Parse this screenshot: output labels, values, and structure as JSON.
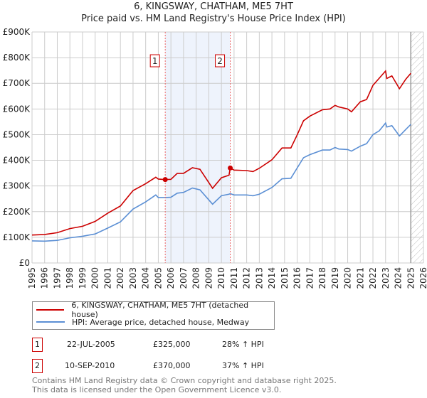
{
  "title": "6, KINGSWAY, CHATHAM, ME5 7HT",
  "subtitle": "Price paid vs. HM Land Registry's House Price Index (HPI)",
  "chart_data": {
    "type": "line",
    "title": "6, KINGSWAY, CHATHAM, ME5 7HT — Price paid vs. HM Land Registry's House Price Index (HPI)",
    "xlim": [
      1995,
      2026
    ],
    "ylim": [
      0,
      900000
    ],
    "x_ticks": [
      "1995",
      "1996",
      "1997",
      "1998",
      "1999",
      "2000",
      "2001",
      "2002",
      "2003",
      "2004",
      "2005",
      "2006",
      "2007",
      "2008",
      "2009",
      "2010",
      "2011",
      "2012",
      "2013",
      "2014",
      "2015",
      "2016",
      "2017",
      "2018",
      "2019",
      "2020",
      "2021",
      "2022",
      "2023",
      "2024",
      "2025",
      "2026"
    ],
    "y_ticks": [
      {
        "v": 0,
        "label": "£0"
      },
      {
        "v": 100000,
        "label": "£100K"
      },
      {
        "v": 200000,
        "label": "£200K"
      },
      {
        "v": 300000,
        "label": "£300K"
      },
      {
        "v": 400000,
        "label": "£400K"
      },
      {
        "v": 500000,
        "label": "£500K"
      },
      {
        "v": 600000,
        "label": "£600K"
      },
      {
        "v": 700000,
        "label": "£700K"
      },
      {
        "v": 800000,
        "label": "£800K"
      },
      {
        "v": 900000,
        "label": "£900K"
      }
    ],
    "grid": true,
    "shaded_range": [
      2005.55,
      2010.7
    ],
    "forecast_from": 2025.0,
    "colors": {
      "property": "#cc0000",
      "hpi": "#5b8fd4",
      "shade": "#eef3fc"
    },
    "x": [
      1995,
      1996,
      1997,
      1998,
      1999,
      2000,
      2001,
      2002,
      2003,
      2004,
      2004.8,
      2005,
      2005.55,
      2006,
      2006.5,
      2007,
      2007.7,
      2008.3,
      2009.3,
      2010,
      2010.6,
      2010.7,
      2011,
      2012,
      2012.5,
      2013,
      2014,
      2014.8,
      2015.5,
      2016,
      2016.5,
      2017,
      2018,
      2018.6,
      2019,
      2019.3,
      2020,
      2020.3,
      2021,
      2021.5,
      2022,
      2022.5,
      2023,
      2023.1,
      2023.5,
      2024.1,
      2024.6,
      2025
    ],
    "series": [
      {
        "name": "6, KINGSWAY, CHATHAM, ME5 7HT (detached house)",
        "values": [
          109000,
          111000,
          118000,
          134000,
          143000,
          162000,
          194000,
          222000,
          282000,
          309000,
          334000,
          327000,
          325000,
          326000,
          349000,
          349000,
          371000,
          365000,
          291000,
          332000,
          342000,
          370000,
          362000,
          360000,
          356000,
          369000,
          402000,
          448000,
          448000,
          499000,
          554000,
          572000,
          597000,
          600000,
          614000,
          608000,
          600000,
          589000,
          628000,
          637000,
          692000,
          720000,
          748000,
          719000,
          729000,
          679000,
          716000,
          739000
        ]
      },
      {
        "name": "HPI: Average price, detached house, Medway",
        "values": [
          86000,
          85000,
          88000,
          98000,
          104000,
          113000,
          136000,
          160000,
          210000,
          238000,
          265000,
          255000,
          255000,
          256000,
          272000,
          275000,
          292000,
          285000,
          229000,
          262000,
          268000,
          270000,
          265000,
          265000,
          262000,
          268000,
          294000,
          328000,
          330000,
          370000,
          410000,
          422000,
          440000,
          440000,
          450000,
          444000,
          442000,
          436000,
          455000,
          465000,
          500000,
          515000,
          545000,
          530000,
          535000,
          495000,
          520000,
          540000
        ]
      }
    ],
    "annotations": [
      {
        "label": "1",
        "x": 2005.55,
        "value": 325000
      },
      {
        "label": "2",
        "x": 2010.7,
        "value": 370000
      }
    ]
  },
  "legend": {
    "property": "6, KINGSWAY, CHATHAM, ME5 7HT (detached house)",
    "hpi": "HPI: Average price, detached house, Medway"
  },
  "sales": [
    {
      "num": "1",
      "date": "22-JUL-2005",
      "price": "£325,000",
      "hpi": "28% ↑ HPI"
    },
    {
      "num": "2",
      "date": "10-SEP-2010",
      "price": "£370,000",
      "hpi": "37% ↑ HPI"
    }
  ],
  "footer": [
    "Contains HM Land Registry data © Crown copyright and database right 2025.",
    "This data is licensed under the Open Government Licence v3.0."
  ]
}
